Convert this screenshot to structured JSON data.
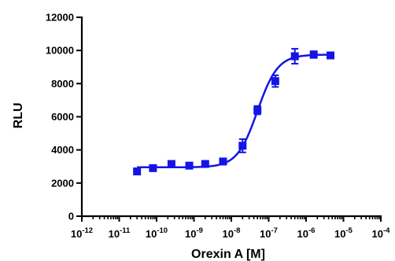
{
  "chart_data": {
    "type": "scatter",
    "xlabel": "Orexin A [M]",
    "ylabel": "RLU",
    "x_scale": "log",
    "xlim": [
      1e-12,
      0.0001
    ],
    "ylim": [
      0,
      12000
    ],
    "x_ticks": [
      1e-12,
      1e-11,
      1e-10,
      1e-09,
      1e-08,
      1e-07,
      1e-06,
      1e-05,
      0.0001
    ],
    "x_tick_mantissa": [
      "10",
      "10",
      "10",
      "10",
      "10",
      "10",
      "10",
      "10",
      "10"
    ],
    "x_tick_exponents": [
      "-12",
      "-11",
      "-10",
      "-9",
      "-8",
      "-7",
      "-6",
      "-5",
      "-4"
    ],
    "y_ticks": [
      0,
      2000,
      4000,
      6000,
      8000,
      10000,
      12000
    ],
    "y_tick_labels": [
      "0",
      "2000",
      "4000",
      "6000",
      "8000",
      "10000",
      "12000"
    ],
    "grid": false,
    "color": "#1414e6",
    "points": [
      {
        "x": 3e-11,
        "y": 2700,
        "err": 150
      },
      {
        "x": 8e-11,
        "y": 2900,
        "err": 100
      },
      {
        "x": 2.5e-10,
        "y": 3150,
        "err": 100
      },
      {
        "x": 7.5e-10,
        "y": 3050,
        "err": 100
      },
      {
        "x": 2e-09,
        "y": 3150,
        "err": 100
      },
      {
        "x": 6e-09,
        "y": 3300,
        "err": 150
      },
      {
        "x": 2e-08,
        "y": 4250,
        "err": 400
      },
      {
        "x": 5e-08,
        "y": 6400,
        "err": 250
      },
      {
        "x": 1.5e-07,
        "y": 8150,
        "err": 350
      },
      {
        "x": 5e-07,
        "y": 9650,
        "err": 450
      },
      {
        "x": 1.6e-06,
        "y": 9750,
        "err": 200
      },
      {
        "x": 4.5e-06,
        "y": 9700,
        "err": 100
      }
    ],
    "fit": {
      "bottom": 2950,
      "top": 9750,
      "log_ec50": -7.3,
      "hill": 1.6,
      "x_range": [
        3e-11,
        4.5e-06
      ]
    }
  }
}
